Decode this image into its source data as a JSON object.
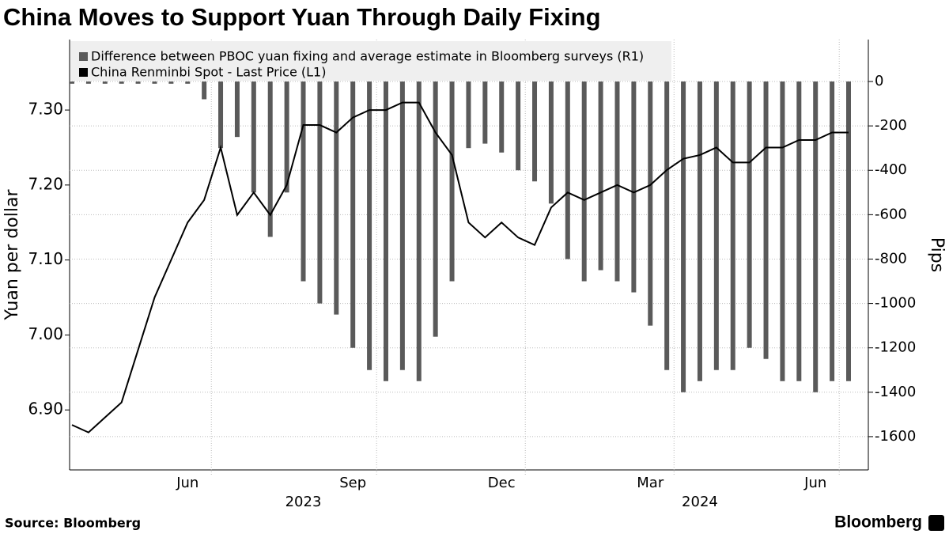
{
  "chart_data": {
    "type": "bar-line",
    "title": "China Moves to Support Yuan Through Daily Fixing",
    "y_label": "Yuan per dollar",
    "y2_label": "Pips",
    "source": "Source: Bloomberg",
    "logo": "Bloomberg",
    "categories": [
      null,
      null,
      null,
      null,
      null,
      null,
      null,
      "Jun",
      null,
      null,
      null,
      null,
      null,
      null,
      null,
      null,
      null,
      "Sep",
      null,
      null,
      null,
      null,
      null,
      null,
      null,
      null,
      "Dec",
      null,
      null,
      null,
      null,
      null,
      null,
      null,
      null,
      "Mar",
      null,
      null,
      null,
      null,
      null,
      null,
      null,
      null,
      null,
      "Jun",
      null,
      null
    ],
    "year_categories": [
      null,
      null,
      null,
      null,
      null,
      null,
      null,
      null,
      null,
      null,
      null,
      null,
      null,
      null,
      "2023",
      null,
      null,
      null,
      null,
      null,
      null,
      null,
      null,
      null,
      null,
      null,
      null,
      null,
      null,
      null,
      null,
      null,
      null,
      null,
      null,
      null,
      null,
      null,
      "2024",
      null,
      null,
      null,
      null,
      null,
      null,
      null,
      null,
      null
    ],
    "series": [
      {
        "name": "Difference between PBOC yuan fixing and average estimate in Bloomberg surveys (R1)",
        "color": "#5a5a5a",
        "axis": "y2",
        "kind": "bar",
        "values": [
          -10,
          -10,
          -10,
          -10,
          -10,
          -10,
          -10,
          -10,
          -80,
          -300,
          -250,
          -500,
          -700,
          -500,
          -900,
          -1000,
          -1050,
          -1200,
          -1300,
          -1350,
          -1300,
          -1350,
          -1150,
          -900,
          -300,
          -280,
          -320,
          -400,
          -450,
          -550,
          -800,
          -900,
          -850,
          -900,
          -950,
          -1100,
          -1300,
          -1400,
          -1350,
          -1300,
          -1300,
          -1200,
          -1250,
          -1350,
          -1350,
          -1400,
          -1350,
          -1350
        ]
      },
      {
        "name": "China Renminbi Spot - Last Price (L1)",
        "color": "#000000",
        "axis": "y",
        "kind": "line",
        "values": [
          6.88,
          6.87,
          6.89,
          6.91,
          6.98,
          7.05,
          7.1,
          7.15,
          7.18,
          7.25,
          7.16,
          7.19,
          7.16,
          7.2,
          7.28,
          7.28,
          7.27,
          7.29,
          7.3,
          7.3,
          7.31,
          7.31,
          7.27,
          7.24,
          7.15,
          7.13,
          7.15,
          7.13,
          7.12,
          7.17,
          7.19,
          7.18,
          7.19,
          7.2,
          7.19,
          7.2,
          7.22,
          7.235,
          7.24,
          7.25,
          7.23,
          7.23,
          7.25,
          7.25,
          7.26,
          7.26,
          7.27,
          7.27
        ]
      }
    ],
    "ylim": [
      6.82,
      7.394
    ],
    "yticks": [
      {
        "value": 6.9,
        "label": "6.90"
      },
      {
        "value": 7.0,
        "label": "7.00"
      },
      {
        "value": 7.1,
        "label": "7.10"
      },
      {
        "value": 7.2,
        "label": "7.20"
      },
      {
        "value": 7.3,
        "label": "7.30"
      }
    ],
    "y2lim": [
      -1750,
      189
    ],
    "y2ticks": [
      -1600,
      -1400,
      -1200,
      -1000,
      -800,
      -600,
      -400,
      -200,
      0
    ],
    "grid": true
  }
}
